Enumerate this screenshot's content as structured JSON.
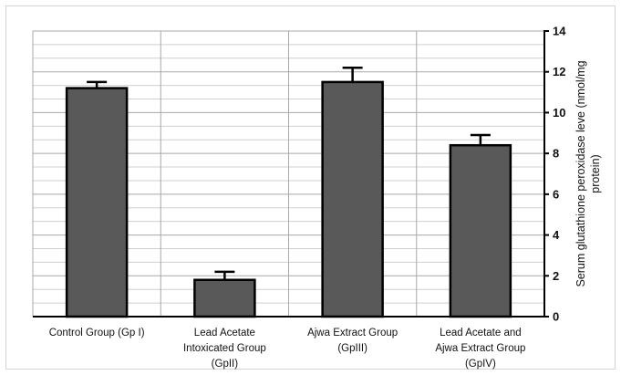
{
  "chart_data": {
    "type": "bar",
    "categories": [
      [
        "Control Group (Gp I)"
      ],
      [
        "Lead Acetate",
        "Intoxicated Group",
        "(GpII)"
      ],
      [
        "Ajwa Extract Group",
        "(GpIII)"
      ],
      [
        "Lead Acetate and",
        "Ajwa Extract Group",
        "(GpIV)"
      ]
    ],
    "values": [
      11.2,
      1.8,
      11.5,
      8.4
    ],
    "error_plus": [
      0.3,
      0.4,
      0.7,
      0.5
    ],
    "ylabel": [
      "Serum glutathione peroxidase leve (nmol/mg",
      "protein)"
    ],
    "ylim": [
      0,
      14
    ],
    "yticks": [
      0,
      2,
      4,
      6,
      8,
      10,
      12,
      14
    ],
    "y_axis_side": "right",
    "grid": true,
    "bar_color": "#595959",
    "bar_edge_color": "#000000"
  }
}
